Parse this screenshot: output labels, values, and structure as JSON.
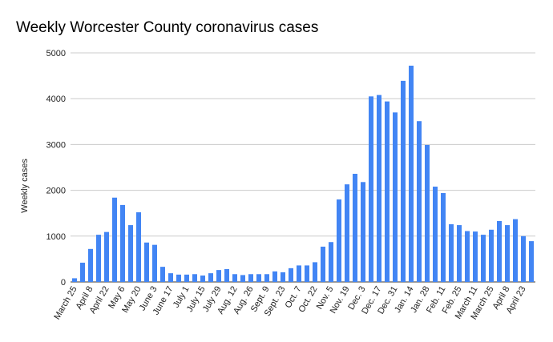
{
  "chart_data": {
    "type": "bar",
    "title": "Weekly Worcester County coronavirus cases",
    "y_label": "Weekly cases",
    "categories": [
      "March 25",
      null,
      "April 8",
      null,
      "April 22",
      null,
      "May 6",
      null,
      "May 20",
      null,
      "June 3",
      null,
      "June 17",
      null,
      "July 1",
      null,
      "July 15",
      null,
      "July 29",
      null,
      "Aug. 12",
      null,
      "Aug. 26",
      null,
      "Sept. 9",
      null,
      "Sept. 23",
      null,
      "Oct. 7",
      null,
      "Oct. 22",
      null,
      "Nov. 5",
      null,
      "Nov. 19",
      null,
      "Dec. 3",
      null,
      "Dec. 17",
      null,
      "Dec. 31",
      null,
      "Jan. 14",
      null,
      "Jan. 28",
      null,
      "Feb. 11",
      null,
      "Feb. 25",
      null,
      "March 11",
      null,
      "March 25",
      null,
      "April 8",
      null,
      "April 23",
      null
    ],
    "values": [
      80,
      420,
      720,
      1030,
      1090,
      1840,
      1680,
      1240,
      1520,
      860,
      810,
      330,
      190,
      160,
      160,
      170,
      140,
      190,
      260,
      280,
      170,
      150,
      170,
      170,
      170,
      230,
      210,
      300,
      360,
      360,
      430,
      770,
      870,
      1800,
      2130,
      2360,
      2180,
      4050,
      4080,
      3940,
      3700,
      4390,
      4720,
      3510,
      2990,
      2080,
      1940,
      1260,
      1240,
      1110,
      1100,
      1030,
      1140,
      1330,
      1240,
      1370,
      1000,
      890
    ],
    "color": "#4285f4",
    "ylim": [
      0,
      5000
    ],
    "yticks": [
      0,
      1000,
      2000,
      3000,
      4000,
      5000
    ],
    "grid": true
  }
}
